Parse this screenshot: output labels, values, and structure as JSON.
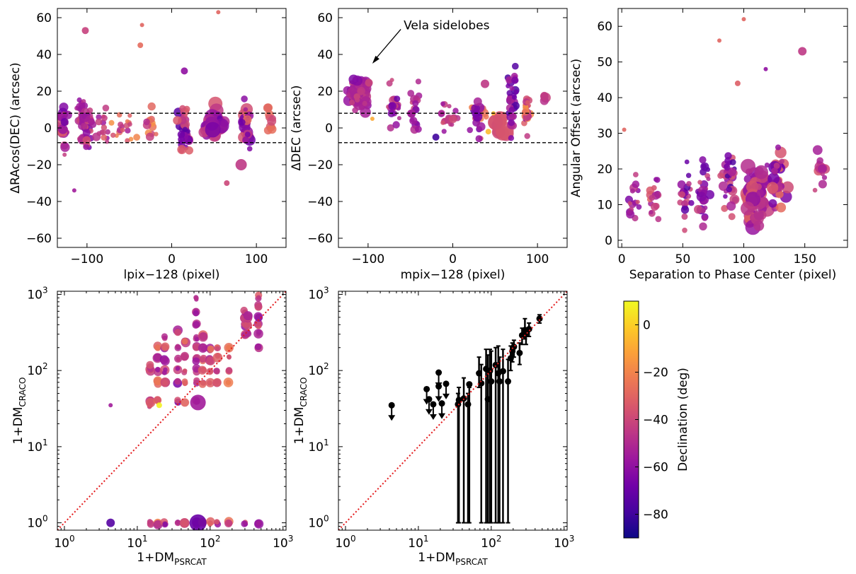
{
  "chart_data": [
    {
      "id": "p1",
      "type": "scatter",
      "xlabel": "lpix−128 (pixel)",
      "ylabel": "ΔRAcos(DEC) (arcsec)",
      "xlim": [
        -135,
        135
      ],
      "ylim": [
        -65,
        65
      ],
      "xticks": [
        -100,
        0,
        100
      ],
      "xtick_labels": [
        "−100",
        "0",
        "100"
      ],
      "yticks": [
        -60,
        -40,
        -20,
        0,
        20,
        40,
        60
      ],
      "ytick_labels": [
        "−60",
        "−40",
        "−20",
        "0",
        "20",
        "40",
        "60"
      ],
      "hlines": [
        8,
        -8
      ],
      "color_by": "declination",
      "clusters": [
        {
          "x": -128,
          "xw": 8,
          "y": 0,
          "yw": 20,
          "n": 30,
          "dec": [
            -70,
            -30
          ],
          "s": [
            3,
            7
          ]
        },
        {
          "x": -108,
          "xw": 6,
          "y": 8,
          "yw": 10,
          "n": 14,
          "dec": [
            -65,
            -40
          ],
          "s": [
            3,
            6
          ]
        },
        {
          "x": -100,
          "xw": 12,
          "y": 0,
          "yw": 18,
          "n": 34,
          "dec": [
            -70,
            -35
          ],
          "s": [
            3,
            7
          ]
        },
        {
          "x": -82,
          "xw": 10,
          "y": 2,
          "yw": 14,
          "n": 14,
          "dec": [
            -60,
            -30
          ],
          "s": [
            3,
            5
          ]
        },
        {
          "x": -55,
          "xw": 18,
          "y": 1,
          "yw": 11,
          "n": 18,
          "dec": [
            -55,
            -10
          ],
          "s": [
            3,
            5
          ]
        },
        {
          "x": -25,
          "xw": 12,
          "y": 2,
          "yw": 12,
          "n": 12,
          "dec": [
            -50,
            -15
          ],
          "s": [
            3,
            6
          ]
        },
        {
          "x": 15,
          "xw": 10,
          "y": 0,
          "yw": 22,
          "n": 38,
          "dec": [
            -75,
            -30
          ],
          "s": [
            3,
            7
          ]
        },
        {
          "x": 50,
          "xw": 18,
          "y": 2,
          "yw": 14,
          "n": 34,
          "dec": [
            -70,
            -35
          ],
          "s": [
            4,
            12
          ]
        },
        {
          "x": 88,
          "xw": 8,
          "y": 2,
          "yw": 18,
          "n": 30,
          "dec": [
            -70,
            -25
          ],
          "s": [
            3,
            9
          ]
        },
        {
          "x": 115,
          "xw": 8,
          "y": 5,
          "yw": 12,
          "n": 10,
          "dec": [
            -45,
            -25
          ],
          "s": [
            3,
            7
          ]
        }
      ],
      "points": [
        {
          "x": -102,
          "y": 53,
          "dec": -42,
          "s": 5
        },
        {
          "x": -35,
          "y": 56,
          "dec": -30,
          "s": 3
        },
        {
          "x": -37,
          "y": 45,
          "dec": -28,
          "s": 4
        },
        {
          "x": 55,
          "y": 63,
          "dec": -30,
          "s": 3
        },
        {
          "x": 15,
          "y": 31,
          "dec": -60,
          "s": 5
        },
        {
          "x": 82,
          "y": -20,
          "dec": -45,
          "s": 8
        },
        {
          "x": -115,
          "y": -34,
          "dec": -55,
          "s": 3
        },
        {
          "x": 65,
          "y": -30,
          "dec": -40,
          "s": 4
        }
      ]
    },
    {
      "id": "p2",
      "type": "scatter",
      "xlabel": "mpix−128 (pixel)",
      "ylabel": "ΔDEC (arcsec)",
      "xlim": [
        -135,
        135
      ],
      "ylim": [
        -65,
        65
      ],
      "xticks": [
        -100,
        0,
        100
      ],
      "xtick_labels": [
        "−100",
        "0",
        "100"
      ],
      "yticks": [
        -60,
        -40,
        -20,
        0,
        20,
        40,
        60
      ],
      "ytick_labels": [
        "−60",
        "−40",
        "−20",
        "0",
        "20",
        "40",
        "60"
      ],
      "hlines": [
        8,
        -8
      ],
      "annotation": {
        "text": "Vela sidelobes",
        "x": -58,
        "y": 56,
        "ax": -95,
        "ay": 35
      },
      "color_by": "declination",
      "clusters": [
        {
          "x": -112,
          "xw": 18,
          "y": 18,
          "yw": 13,
          "n": 80,
          "dec": [
            -65,
            -40
          ],
          "s": [
            3,
            8
          ]
        },
        {
          "x": -70,
          "xw": 10,
          "y": 10,
          "yw": 20,
          "n": 24,
          "dec": [
            -70,
            -40
          ],
          "s": [
            3,
            6
          ]
        },
        {
          "x": -45,
          "xw": 10,
          "y": 10,
          "yw": 20,
          "n": 22,
          "dec": [
            -70,
            -40
          ],
          "s": [
            3,
            6
          ]
        },
        {
          "x": -5,
          "xw": 15,
          "y": 4,
          "yw": 13,
          "n": 18,
          "dec": [
            -65,
            -30
          ],
          "s": [
            3,
            6
          ]
        },
        {
          "x": 30,
          "xw": 15,
          "y": 6,
          "yw": 16,
          "n": 24,
          "dec": [
            -75,
            -20
          ],
          "s": [
            3,
            7
          ]
        },
        {
          "x": 55,
          "xw": 12,
          "y": 1,
          "yw": 7,
          "n": 12,
          "dec": [
            -45,
            -30
          ],
          "s": [
            6,
            14
          ]
        },
        {
          "x": 70,
          "xw": 8,
          "y": 16,
          "yw": 24,
          "n": 36,
          "dec": [
            -80,
            -50
          ],
          "s": [
            3,
            6
          ]
        },
        {
          "x": 88,
          "xw": 6,
          "y": 8,
          "yw": 16,
          "n": 24,
          "dec": [
            -60,
            -15
          ],
          "s": [
            3,
            6
          ]
        },
        {
          "x": 110,
          "xw": 8,
          "y": 16,
          "yw": 4,
          "n": 4,
          "dec": [
            -48,
            -40
          ],
          "s": [
            5,
            8
          ]
        }
      ],
      "points": [
        {
          "x": 38,
          "y": 24,
          "dec": -45,
          "s": 6
        },
        {
          "x": 42,
          "y": -2,
          "dec": -5,
          "s": 4
        },
        {
          "x": -20,
          "y": -5,
          "dec": -80,
          "s": 5
        },
        {
          "x": -95,
          "y": 5,
          "dec": -10,
          "s": 3
        },
        {
          "x": 48,
          "y": 8,
          "dec": -5,
          "s": 3
        }
      ]
    },
    {
      "id": "p3",
      "type": "scatter",
      "xlabel": "Separation to Phase Center (pixel)",
      "ylabel": "Angular Offset (arcsec)",
      "xlim": [
        -3,
        185
      ],
      "ylim": [
        -2,
        65
      ],
      "xticks": [
        0,
        50,
        100,
        150
      ],
      "xtick_labels": [
        "0",
        "50",
        "100",
        "150"
      ],
      "yticks": [
        0,
        10,
        20,
        30,
        40,
        50,
        60
      ],
      "ytick_labels": [
        "0",
        "10",
        "20",
        "30",
        "40",
        "50",
        "60"
      ],
      "color_by": "declination",
      "clusters": [
        {
          "x": 10,
          "xw": 5,
          "y": 12,
          "yw": 10,
          "n": 16,
          "dec": [
            -65,
            -35
          ],
          "s": [
            3,
            6
          ]
        },
        {
          "x": 26,
          "xw": 6,
          "y": 11,
          "yw": 10,
          "n": 16,
          "dec": [
            -60,
            -30
          ],
          "s": [
            3,
            6
          ]
        },
        {
          "x": 52,
          "xw": 6,
          "y": 13,
          "yw": 13,
          "n": 22,
          "dec": [
            -75,
            -35
          ],
          "s": [
            3,
            6
          ]
        },
        {
          "x": 68,
          "xw": 8,
          "y": 14,
          "yw": 12,
          "n": 26,
          "dec": [
            -75,
            -35
          ],
          "s": [
            3,
            7
          ]
        },
        {
          "x": 88,
          "xw": 10,
          "y": 16,
          "yw": 14,
          "n": 34,
          "dec": [
            -80,
            -35
          ],
          "s": [
            3,
            7
          ]
        },
        {
          "x": 110,
          "xw": 14,
          "y": 12,
          "yw": 12,
          "n": 60,
          "dec": [
            -60,
            -30
          ],
          "s": [
            4,
            11
          ]
        },
        {
          "x": 128,
          "xw": 10,
          "y": 18,
          "yw": 12,
          "n": 40,
          "dec": [
            -70,
            -25
          ],
          "s": [
            3,
            9
          ]
        },
        {
          "x": 163,
          "xw": 6,
          "y": 20,
          "yw": 12,
          "n": 14,
          "dec": [
            -55,
            -35
          ],
          "s": [
            3,
            8
          ]
        }
      ],
      "points": [
        {
          "x": 100,
          "y": 62,
          "dec": -30,
          "s": 3
        },
        {
          "x": 80,
          "y": 56,
          "dec": -30,
          "s": 3
        },
        {
          "x": 148,
          "y": 53,
          "dec": -45,
          "s": 6
        },
        {
          "x": 118,
          "y": 48,
          "dec": -60,
          "s": 3
        },
        {
          "x": 2,
          "y": 31,
          "dec": -30,
          "s": 3
        },
        {
          "x": 95,
          "y": 44,
          "dec": -32,
          "s": 4
        }
      ]
    },
    {
      "id": "p4",
      "type": "scatter",
      "xlabel": "1+DM",
      "xlabel_sub": "PSRCAT",
      "ylabel": "1+DM",
      "ylabel_sub": "CRACO",
      "xscale": "log",
      "yscale": "log",
      "xlim": [
        0.8,
        1100
      ],
      "ylim": [
        0.8,
        1100
      ],
      "ticks": [
        1,
        10,
        100,
        1000
      ],
      "diagonal": true,
      "color_by": "declination",
      "columns": [
        {
          "x": 15,
          "ys": [
            1,
            35,
            40,
            100,
            110
          ],
          "dec": [
            -50,
            -30
          ]
        },
        {
          "x": 19,
          "ys": [
            1,
            40,
            70,
            100,
            150,
            200
          ],
          "dec": [
            -60,
            -20
          ]
        },
        {
          "x": 24,
          "ys": [
            1,
            70,
            100,
            140,
            200,
            270
          ],
          "dec": [
            -65,
            -30
          ]
        },
        {
          "x": 36,
          "ys": [
            1,
            40,
            70,
            100,
            140,
            200,
            320
          ],
          "dec": [
            -70,
            -35
          ]
        },
        {
          "x": 45,
          "ys": [
            1,
            70,
            100,
            150,
            240
          ],
          "dec": [
            -55,
            -25
          ]
        },
        {
          "x": 65,
          "ys": [
            1,
            38,
            70,
            100,
            140,
            200,
            270,
            400,
            600,
            900
          ],
          "dec": [
            -60,
            -40
          ]
        },
        {
          "x": 80,
          "ys": [
            1,
            70,
            100,
            140,
            200,
            280
          ],
          "dec": [
            -55,
            -25
          ]
        },
        {
          "x": 100,
          "ys": [
            1,
            70,
            100,
            140,
            200
          ],
          "dec": [
            -55,
            -25
          ]
        },
        {
          "x": 125,
          "ys": [
            1,
            70,
            100,
            150,
            200
          ],
          "dec": [
            -60,
            -25
          ]
        },
        {
          "x": 180,
          "ys": [
            1,
            70,
            100,
            150,
            200
          ],
          "dec": [
            -45,
            -20
          ]
        },
        {
          "x": 300,
          "ys": [
            1,
            300,
            400,
            500,
            600
          ],
          "dec": [
            -60,
            -35
          ]
        },
        {
          "x": 330,
          "ys": [
            300,
            400,
            500
          ],
          "dec": [
            -55,
            -35
          ]
        },
        {
          "x": 460,
          "ys": [
            1,
            200,
            300,
            400,
            500,
            700,
            900
          ],
          "dec": [
            -65,
            -30
          ]
        }
      ],
      "points": [
        {
          "x": 4.3,
          "y": 1,
          "dec": -75,
          "s": 6
        },
        {
          "x": 4.3,
          "y": 35,
          "dec": -55,
          "s": 3
        },
        {
          "x": 20,
          "y": 35,
          "dec": 8,
          "s": 4
        },
        {
          "x": 68,
          "y": 38,
          "dec": -55,
          "s": 11
        },
        {
          "x": 68,
          "y": 1,
          "dec": -70,
          "s": 12
        },
        {
          "x": 45,
          "y": 38,
          "dec": -30,
          "s": 6
        }
      ]
    },
    {
      "id": "p5",
      "type": "scatter",
      "xlabel": "1+DM",
      "xlabel_sub": "PSRCAT",
      "ylabel": "1+DM",
      "ylabel_sub": "CRACO",
      "xscale": "log",
      "yscale": "log",
      "xlim": [
        0.8,
        1100
      ],
      "ylim": [
        0.8,
        1100
      ],
      "ticks": [
        1,
        10,
        100,
        1000
      ],
      "diagonal": true,
      "errorbars": [
        {
          "x": 4.3,
          "y": 35,
          "upper_limit": true
        },
        {
          "x": 13,
          "y": 57,
          "upper_limit": true
        },
        {
          "x": 14,
          "y": 42,
          "upper_limit": true
        },
        {
          "x": 16,
          "y": 36,
          "upper_limit": true
        },
        {
          "x": 19,
          "y": 94,
          "upper_limit": true
        },
        {
          "x": 19,
          "y": 62,
          "upper_limit": true
        },
        {
          "x": 21,
          "y": 37,
          "upper_limit": true
        },
        {
          "x": 24,
          "y": 67,
          "upper_limit": true
        },
        {
          "x": 35,
          "y": 36,
          "lo": 1,
          "hi": 50
        },
        {
          "x": 36,
          "y": 41,
          "lo": 1,
          "hi": 60
        },
        {
          "x": 42,
          "y": 43,
          "lo": 1,
          "hi": 80
        },
        {
          "x": 48,
          "y": 36,
          "lo": 1,
          "hi": 50
        },
        {
          "x": 50,
          "y": 66,
          "lo": 1,
          "hi": 60
        },
        {
          "x": 68,
          "y": 92,
          "lo": 60,
          "hi": 150
        },
        {
          "x": 73,
          "y": 68,
          "lo": 1,
          "hi": 120
        },
        {
          "x": 85,
          "y": 105,
          "lo": 1,
          "hi": 190
        },
        {
          "x": 90,
          "y": 42,
          "lo": 1,
          "hi": 160
        },
        {
          "x": 96,
          "y": 99,
          "lo": 1,
          "hi": 190
        },
        {
          "x": 100,
          "y": 72,
          "lo": 1,
          "hi": 180
        },
        {
          "x": 115,
          "y": 118,
          "lo": 1,
          "hi": 200
        },
        {
          "x": 125,
          "y": 92,
          "lo": 1,
          "hi": 210
        },
        {
          "x": 130,
          "y": 72,
          "lo": 1,
          "hi": 150
        },
        {
          "x": 145,
          "y": 98,
          "lo": 1,
          "hi": 190
        },
        {
          "x": 170,
          "y": 72,
          "lo": 1,
          "hi": 140
        },
        {
          "x": 185,
          "y": 145,
          "lo": 100,
          "hi": 210
        },
        {
          "x": 195,
          "y": 180,
          "lo": 130,
          "hi": 230
        },
        {
          "x": 205,
          "y": 205,
          "lo": 150,
          "hi": 250
        },
        {
          "x": 245,
          "y": 170,
          "lo": 120,
          "hi": 230
        },
        {
          "x": 265,
          "y": 290,
          "lo": 220,
          "hi": 360
        },
        {
          "x": 290,
          "y": 340,
          "lo": 260,
          "hi": 480
        },
        {
          "x": 300,
          "y": 300,
          "lo": 220,
          "hi": 360
        },
        {
          "x": 330,
          "y": 350,
          "lo": 280,
          "hi": 420
        },
        {
          "x": 460,
          "y": 480,
          "lo": 420,
          "hi": 540
        }
      ]
    }
  ],
  "colorbar": {
    "label": "Declination (deg)",
    "min": -90,
    "max": 10,
    "ticks": [
      0,
      -20,
      -40,
      -60,
      -80
    ],
    "tick_labels": [
      "0",
      "−20",
      "−40",
      "−60",
      "−80"
    ],
    "colormap": "plasma",
    "stops": [
      "#0d0887",
      "#46039f",
      "#7201a8",
      "#9c179e",
      "#bd3786",
      "#d8576b",
      "#ed7953",
      "#fb9f3a",
      "#fdca26",
      "#f0f921"
    ]
  }
}
